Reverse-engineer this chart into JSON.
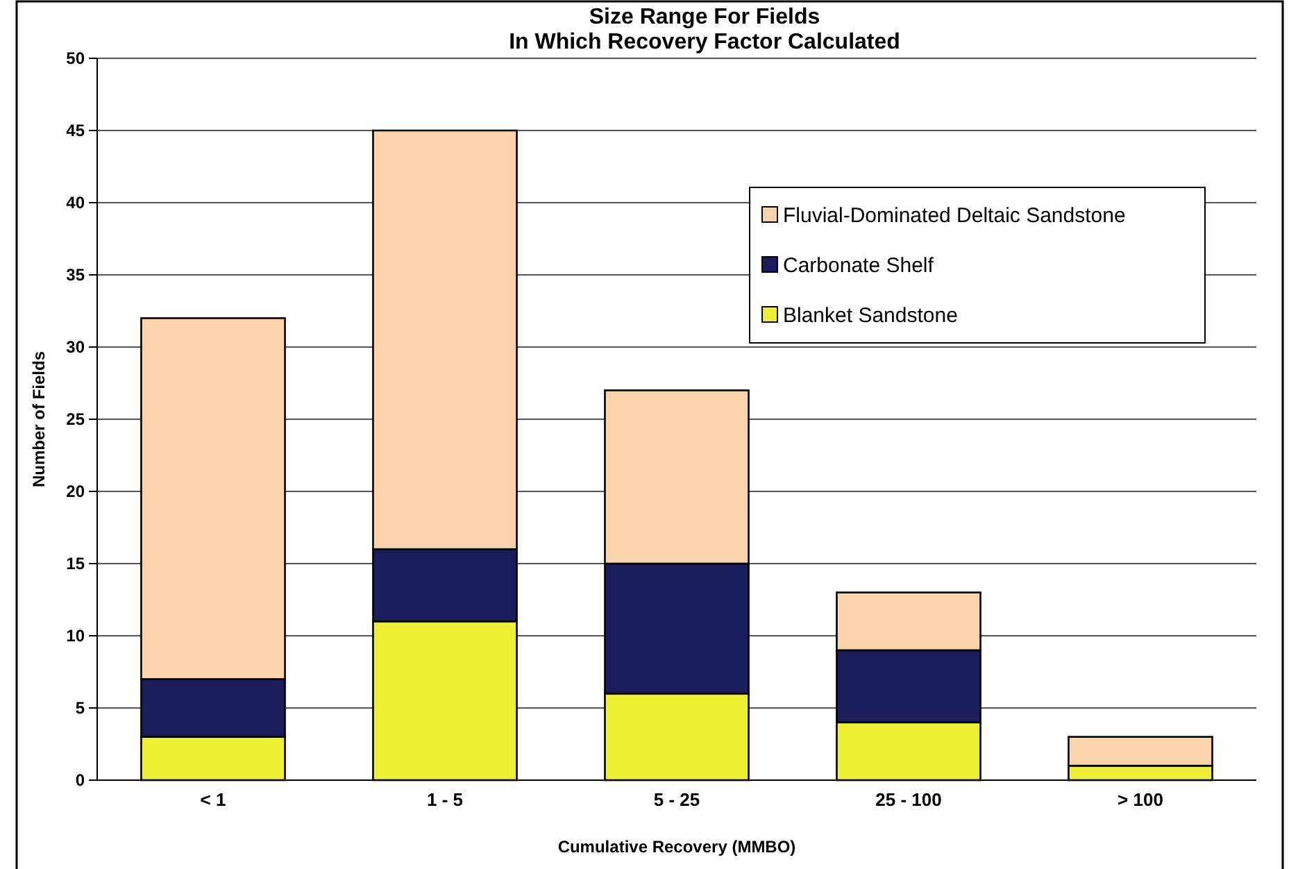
{
  "chart_data": {
    "type": "bar",
    "title": "Size Range For Fields\nIn Which Recovery Factor Calculated",
    "xlabel": "Cumulative Recovery (MMBO)",
    "ylabel": "Number of Fields",
    "categories": [
      "< 1",
      "1 - 5",
      "5 - 25",
      "25 - 100",
      "> 100"
    ],
    "stacked": true,
    "series": [
      {
        "name": "Blanket Sandstone",
        "color": "#eeee33",
        "values": [
          3,
          11,
          6,
          4,
          1
        ]
      },
      {
        "name": "Carbonate Shelf",
        "color": "#1c1c5c",
        "values": [
          4,
          5,
          9,
          5,
          0
        ]
      },
      {
        "name": "Fluvial-Dominated Deltaic Sandstone",
        "color": "#f9d3aa",
        "values": [
          25,
          29,
          12,
          4,
          2
        ]
      }
    ],
    "ylim": [
      0,
      50
    ],
    "yticks": [
      0,
      5,
      10,
      15,
      20,
      25,
      30,
      35,
      40,
      45,
      50
    ],
    "grid": "y",
    "legend": "top right"
  }
}
